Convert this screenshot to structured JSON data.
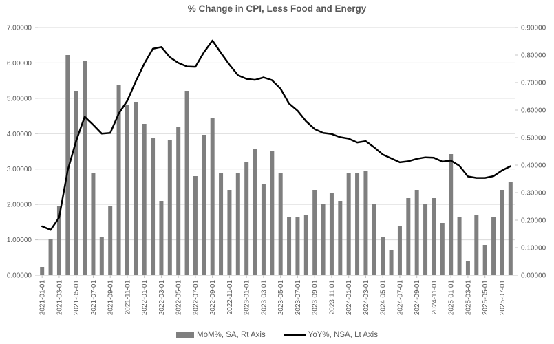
{
  "chart_data": {
    "type": "bar+line",
    "title": "% Change in CPI, Less Food and Energy",
    "categories": [
      "2021-01-01",
      "2021-02-01",
      "2021-03-01",
      "2021-04-01",
      "2021-05-01",
      "2021-06-01",
      "2021-07-01",
      "2021-08-01",
      "2021-09-01",
      "2021-10-01",
      "2021-11-01",
      "2021-12-01",
      "2022-01-01",
      "2022-02-01",
      "2022-03-01",
      "2022-04-01",
      "2022-05-01",
      "2022-06-01",
      "2022-07-01",
      "2022-08-01",
      "2022-09-01",
      "2022-10-01",
      "2022-11-01",
      "2022-12-01",
      "2023-01-01",
      "2023-02-01",
      "2023-03-01",
      "2023-04-01",
      "2023-05-01",
      "2023-06-01",
      "2023-07-01",
      "2023-08-01",
      "2023-09-01",
      "2023-10-01",
      "2023-11-01",
      "2023-12-01",
      "2024-01-01",
      "2024-02-01",
      "2024-03-01",
      "2024-04-01",
      "2024-05-01",
      "2024-06-01",
      "2024-07-01",
      "2024-08-01",
      "2024-09-01",
      "2024-10-01",
      "2024-11-01",
      "2024-12-01",
      "2025-01-01",
      "2025-02-01",
      "2025-03-01",
      "2025-04-01",
      "2025-05-01",
      "2025-06-01",
      "2025-07-01",
      "2025-08-01"
    ],
    "series": [
      {
        "name": "MoM%, SA, Rt Axis",
        "type": "bar",
        "axis": "right",
        "color": "#7f7f7f",
        "values": [
          0.03,
          0.13,
          0.25,
          0.8,
          0.67,
          0.78,
          0.37,
          0.14,
          0.25,
          0.69,
          0.62,
          0.63,
          0.55,
          0.5,
          0.27,
          0.49,
          0.54,
          0.67,
          0.36,
          0.51,
          0.57,
          0.37,
          0.31,
          0.37,
          0.41,
          0.46,
          0.33,
          0.45,
          0.37,
          0.21,
          0.21,
          0.22,
          0.31,
          0.26,
          0.3,
          0.27,
          0.37,
          0.37,
          0.38,
          0.26,
          0.14,
          0.09,
          0.18,
          0.28,
          0.31,
          0.26,
          0.28,
          0.19,
          0.44,
          0.21,
          0.05,
          0.22,
          0.11,
          0.21,
          0.31,
          0.34
        ]
      },
      {
        "name": "YoY%, NSA, Lt Axis",
        "type": "line",
        "axis": "left",
        "color": "#000000",
        "values": [
          1.38,
          1.28,
          1.63,
          2.96,
          3.8,
          4.48,
          4.25,
          4.0,
          4.02,
          4.57,
          4.93,
          5.48,
          5.98,
          6.4,
          6.45,
          6.16,
          6.0,
          5.9,
          5.89,
          6.3,
          6.63,
          6.28,
          5.95,
          5.65,
          5.55,
          5.52,
          5.59,
          5.51,
          5.27,
          4.85,
          4.65,
          4.35,
          4.13,
          4.02,
          3.99,
          3.9,
          3.86,
          3.75,
          3.79,
          3.61,
          3.41,
          3.3,
          3.19,
          3.22,
          3.29,
          3.33,
          3.32,
          3.21,
          3.24,
          3.09,
          2.79,
          2.75,
          2.75,
          2.8,
          2.96,
          3.08
        ]
      }
    ],
    "left_axis": {
      "min": 0,
      "max": 7,
      "step": 1,
      "tick_labels": [
        "7.00000",
        "6.00000",
        "5.00000",
        "4.00000",
        "3.00000",
        "2.00000",
        "1.00000",
        "0.00000"
      ]
    },
    "right_axis": {
      "min": 0,
      "max": 0.9,
      "step": 0.1,
      "tick_labels": [
        "0.90000",
        "0.80000",
        "0.70000",
        "0.60000",
        "0.50000",
        "0.40000",
        "0.30000",
        "0.20000",
        "0.10000",
        "0.00000"
      ]
    },
    "x_axis": {
      "label_every": 2,
      "tick_labels": [
        "2021-01-01",
        "2021-03-01",
        "2021-05-01",
        "2021-07-01",
        "2021-09-01",
        "2021-11-01",
        "2022-01-01",
        "2022-03-01",
        "2022-05-01",
        "2022-07-01",
        "2022-09-01",
        "2022-11-01",
        "2023-01-01",
        "2023-03-01",
        "2023-05-01",
        "2023-07-01",
        "2023-09-01",
        "2023-11-01",
        "2024-01-01",
        "2024-03-01",
        "2024-05-01",
        "2024-07-01",
        "2024-09-01",
        "2024-11-01",
        "2025-01-01",
        "2025-03-01",
        "2025-05-01",
        "2025-07-01"
      ]
    },
    "grid": true,
    "legend_position": "bottom",
    "colors": {
      "grid": "#d9d9d9",
      "axis": "#c6c6c6",
      "text": "#595959",
      "background": "#ffffff"
    }
  }
}
